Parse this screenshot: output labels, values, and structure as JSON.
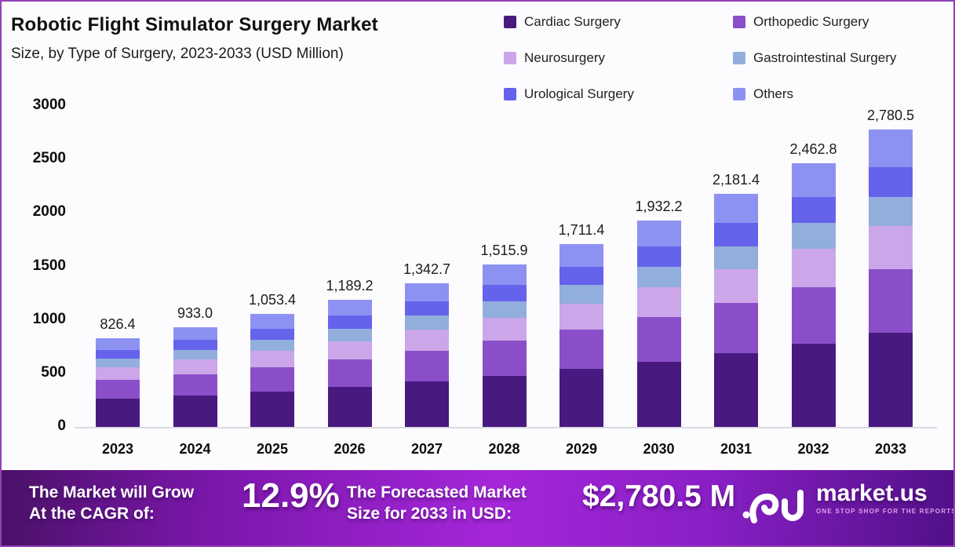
{
  "header": {
    "title": "Robotic Flight Simulator Surgery Market",
    "subtitle": "Size, by Type of Surgery, 2023-2033 (USD Million)"
  },
  "legend": [
    {
      "label": "Cardiac Surgery",
      "color": "#48197f"
    },
    {
      "label": "Orthopedic Surgery",
      "color": "#8a4fc8"
    },
    {
      "label": "Neurosurgery",
      "color": "#cba6e9"
    },
    {
      "label": "Gastrointestinal Surgery",
      "color": "#92aedd"
    },
    {
      "label": "Urological Surgery",
      "color": "#6563ec"
    },
    {
      "label": "Others",
      "color": "#8d92f2"
    }
  ],
  "chart_data": {
    "type": "bar",
    "stacked": true,
    "title": "Robotic Flight Simulator Surgery Market Size, by Type of Surgery, 2023-2033 (USD Million)",
    "xlabel": "",
    "ylabel": "",
    "ylim": [
      0,
      3000
    ],
    "y_ticks": [
      0,
      500,
      1000,
      1500,
      2000,
      2500,
      3000
    ],
    "grid": false,
    "legend_position": "top-right",
    "categories": [
      "2023",
      "2024",
      "2025",
      "2026",
      "2027",
      "2028",
      "2029",
      "2030",
      "2031",
      "2032",
      "2033"
    ],
    "totals": [
      826.4,
      933.0,
      1053.4,
      1189.2,
      1342.7,
      1515.9,
      1711.4,
      1932.2,
      2181.4,
      2462.8,
      2780.5
    ],
    "total_labels": [
      "826.4",
      "933.0",
      "1,053.4",
      "1,189.2",
      "1,342.7",
      "1,515.9",
      "1,711.4",
      "1,932.2",
      "2,181.4",
      "2,462.8",
      "2,780.5"
    ],
    "series": [
      {
        "name": "Cardiac Surgery",
        "color": "#48197f",
        "values": [
          261.1,
          294.8,
          332.9,
          375.8,
          424.3,
          479.0,
          540.8,
          610.6,
          689.3,
          778.2,
          878.6
        ]
      },
      {
        "name": "Orthopedic Surgery",
        "color": "#8a4fc8",
        "values": [
          176.8,
          199.7,
          225.4,
          254.5,
          287.3,
          324.4,
          366.2,
          413.5,
          466.8,
          527.0,
          595.0
        ]
      },
      {
        "name": "Neurosurgery",
        "color": "#cba6e9",
        "values": [
          119.8,
          135.3,
          152.7,
          172.4,
          194.7,
          219.8,
          248.2,
          280.2,
          316.3,
          357.1,
          403.2
        ]
      },
      {
        "name": "Gastrointestinal Surgery",
        "color": "#92aedd",
        "values": [
          81.8,
          92.4,
          104.3,
          117.7,
          132.9,
          150.1,
          169.4,
          191.3,
          216.0,
          243.8,
          275.3
        ]
      },
      {
        "name": "Urological Surgery",
        "color": "#6563ec",
        "values": [
          82.6,
          93.3,
          105.3,
          118.9,
          134.3,
          151.6,
          171.1,
          193.2,
          218.1,
          246.3,
          278.1
        ]
      },
      {
        "name": "Others",
        "color": "#8d92f2",
        "values": [
          104.1,
          117.6,
          132.7,
          149.8,
          169.2,
          191.0,
          215.6,
          243.5,
          274.9,
          310.3,
          350.4
        ]
      }
    ]
  },
  "footer": {
    "cagr_line1": "The Market will Grow",
    "cagr_line2": "At the CAGR of:",
    "cagr_value": "12.9%",
    "forecast_line1": "The Forecasted Market",
    "forecast_line2": "Size for 2033 in USD:",
    "forecast_value": "$2,780.5 M",
    "brand": "market.us",
    "brand_tagline": "ONE STOP SHOP FOR THE REPORTS"
  }
}
